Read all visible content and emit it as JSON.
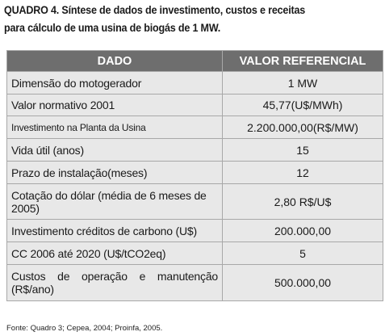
{
  "title": {
    "line1": "QUADRO 4. Síntese de dados de investimento, custos e receitas",
    "line2": "para cálculo de uma usina de biogás de 1 MW."
  },
  "table": {
    "headers": [
      "DADO",
      "VALOR REFERENCIAL"
    ],
    "rows": [
      {
        "label": "Dimensão do motogerador",
        "value": "1 MW"
      },
      {
        "label": "Valor normativo 2001",
        "value": "45,77(U$/MWh)"
      },
      {
        "label": "Investimento na Planta da Usina",
        "value": "2.200.000,00(R$/MW)"
      },
      {
        "label": "Vida útil (anos)",
        "value": "15"
      },
      {
        "label": "Prazo de instalação(meses)",
        "value": "12"
      },
      {
        "label": "Cotação do dólar (média de 6 meses de 2005)",
        "value": "2,80 R$/U$"
      },
      {
        "label": "Investimento créditos de carbono (U$)",
        "value": "200.000,00"
      },
      {
        "label": "CC 2006 até 2020 (U$/tCO2eq)",
        "value": "5"
      },
      {
        "label": "Custos de operação e manutenção (R$/ano)",
        "value": "500.000,00"
      }
    ]
  },
  "source": "Fonte: Quadro 3; Cepea, 2004; Proinfa, 2005."
}
